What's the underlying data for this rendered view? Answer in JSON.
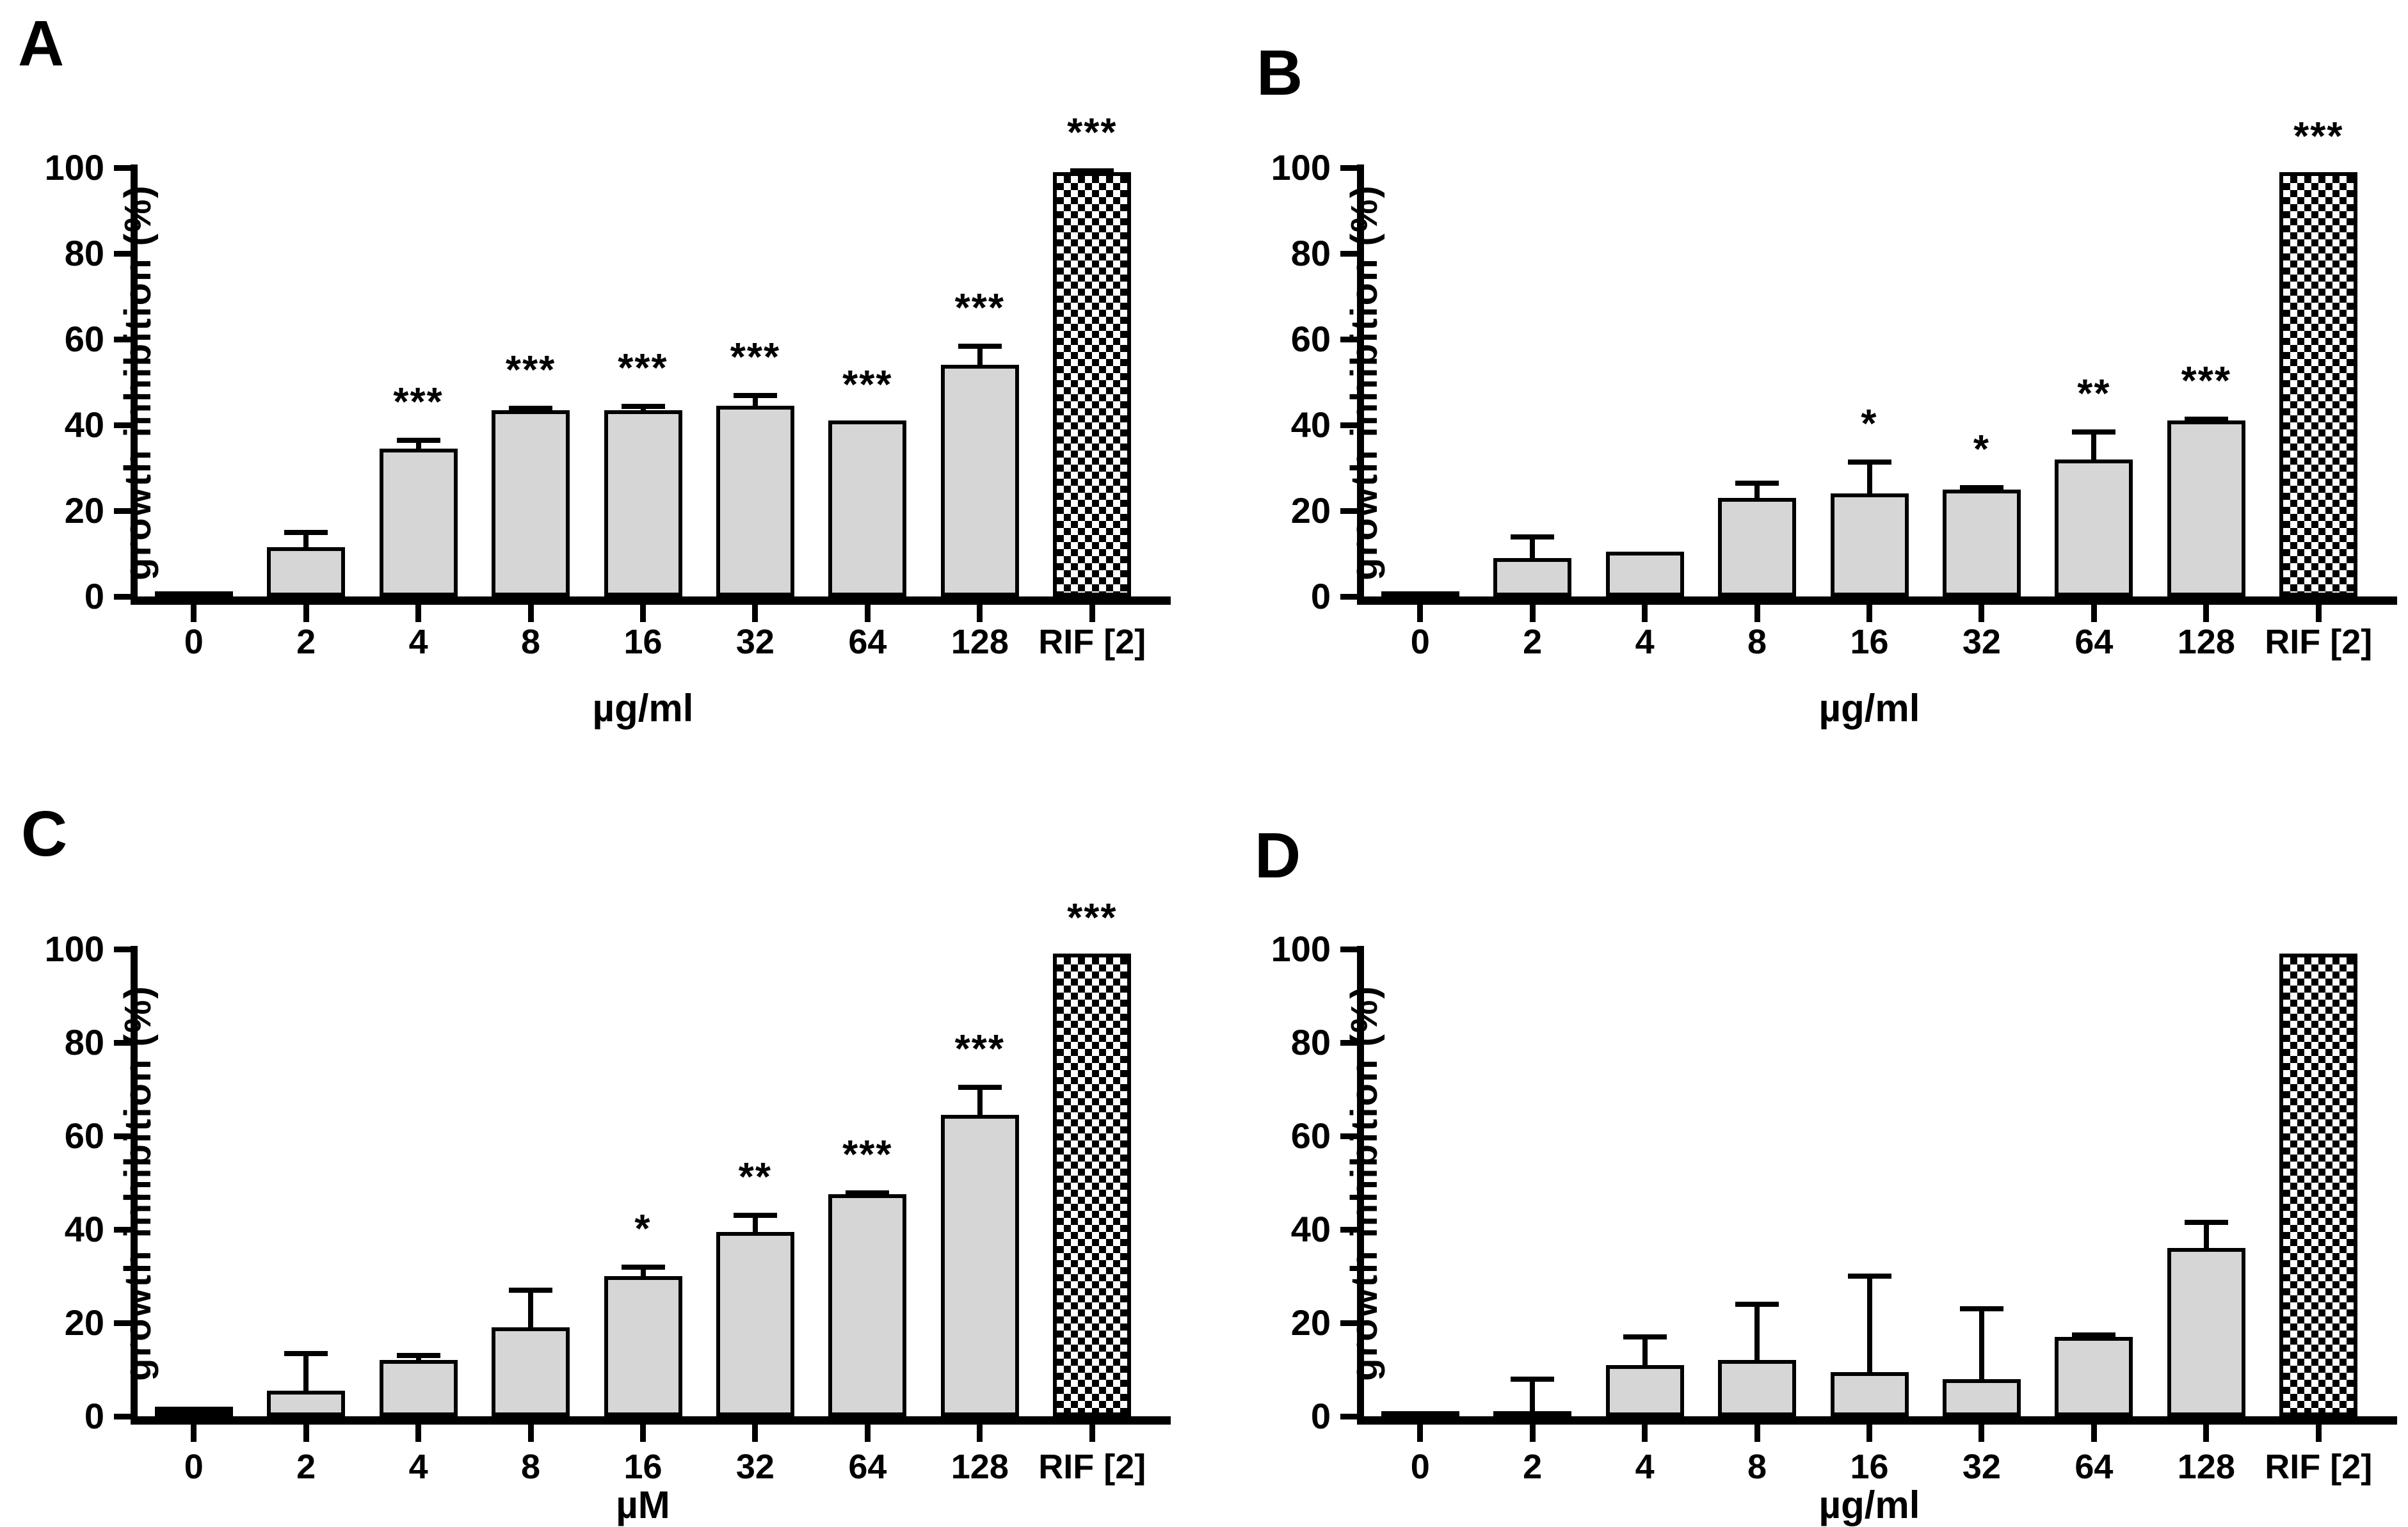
{
  "figure": {
    "background": "#ffffff",
    "bar_fill": "#d6d6d6",
    "bar_border": "#000000",
    "control_bar_fill": "#000000",
    "rif_bar_pattern": "black-white-checkerboard",
    "significance_symbols": {
      "one": "*",
      "two": "**",
      "three": "***"
    }
  },
  "chart_data": [
    {
      "type": "bar",
      "panel": "A",
      "xlabel": "µg/ml",
      "ylabel": "growth inhibition (%)",
      "ylim": [
        0,
        100
      ],
      "y_ticks": [
        0,
        20,
        40,
        60,
        80,
        100
      ],
      "legend": "none",
      "grid": "off",
      "categories": [
        "0",
        "2",
        "4",
        "8",
        "16",
        "32",
        "64",
        "128",
        "RIF [2]"
      ],
      "values": [
        0.7,
        11.5,
        34.5,
        43.5,
        43.5,
        44.5,
        41,
        54,
        99
      ],
      "errors_upper": [
        0,
        4,
        2.5,
        1,
        1.5,
        3,
        0,
        5,
        0.8
      ],
      "significance": [
        "",
        "",
        "***",
        "***",
        "***",
        "***",
        "***",
        "***",
        "***"
      ],
      "bar_fills": [
        "black",
        "gray",
        "gray",
        "gray",
        "gray",
        "gray",
        "gray",
        "gray",
        "checker"
      ]
    },
    {
      "type": "bar",
      "panel": "B",
      "xlabel": "µg/ml",
      "ylabel": "growth inhibition (%)",
      "ylim": [
        0,
        100
      ],
      "y_ticks": [
        0,
        20,
        40,
        60,
        80,
        100
      ],
      "legend": "none",
      "grid": "off",
      "categories": [
        "0",
        "2",
        "4",
        "8",
        "16",
        "32",
        "64",
        "128",
        "RIF [2]"
      ],
      "values": [
        0.7,
        9,
        10.5,
        23,
        24,
        25,
        32,
        41,
        99
      ],
      "errors_upper": [
        0,
        5.5,
        0,
        4,
        8,
        1,
        7,
        1,
        0
      ],
      "significance": [
        "",
        "",
        "",
        "",
        "*",
        "*",
        "**",
        "***",
        "***"
      ],
      "bar_fills": [
        "black",
        "gray",
        "gray",
        "gray",
        "gray",
        "gray",
        "gray",
        "gray",
        "checker"
      ]
    },
    {
      "type": "bar",
      "panel": "C",
      "xlabel": "µM",
      "ylabel": "growth inhibition (%)",
      "ylim": [
        0,
        100
      ],
      "y_ticks": [
        0,
        20,
        40,
        60,
        80,
        100
      ],
      "legend": "none",
      "grid": "off",
      "categories": [
        "0",
        "2",
        "4",
        "8",
        "16",
        "32",
        "64",
        "128",
        "RIF [2]"
      ],
      "values": [
        2,
        5.5,
        12,
        19,
        30,
        39.5,
        47.5,
        64.5,
        99
      ],
      "errors_upper": [
        0,
        8.5,
        1.5,
        8.5,
        2.5,
        4,
        0.8,
        6.5,
        0
      ],
      "significance": [
        "",
        "",
        "",
        "",
        "*",
        "**",
        "***",
        "***",
        "***"
      ],
      "bar_fills": [
        "black",
        "gray",
        "gray",
        "gray",
        "gray",
        "gray",
        "gray",
        "gray",
        "checker"
      ]
    },
    {
      "type": "bar",
      "panel": "D",
      "xlabel": "µg/ml",
      "ylabel": "growth inhibition (%)",
      "ylim": [
        0,
        100
      ],
      "y_ticks": [
        0,
        20,
        40,
        60,
        80,
        100
      ],
      "legend": "none",
      "grid": "off",
      "categories": [
        "0",
        "2",
        "4",
        "8",
        "16",
        "32",
        "64",
        "128",
        "RIF [2]"
      ],
      "values": [
        0.7,
        0.9,
        11,
        12,
        9.5,
        8,
        17,
        36,
        99
      ],
      "errors_upper": [
        0,
        7.6,
        6.5,
        12.5,
        21,
        15.5,
        1,
        6,
        0
      ],
      "significance": [
        "",
        "",
        "",
        "",
        "",
        "",
        "",
        "",
        ""
      ],
      "bar_fills": [
        "black",
        "black",
        "gray",
        "gray",
        "gray",
        "gray",
        "gray",
        "gray",
        "checker"
      ]
    }
  ]
}
